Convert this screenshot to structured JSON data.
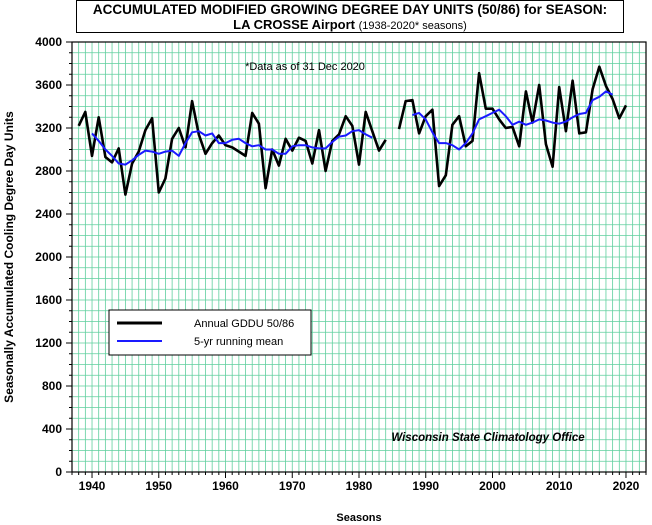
{
  "title": {
    "line1": "ACCUMULATED MODIFIED GROWING DEGREE DAY UNITS (50/86) for SEASON:",
    "station": "LA CROSSE Airport",
    "seasons": "(1938-2020* seasons)"
  },
  "note": "*Data as of 31 Dec 2020",
  "credit": "Wisconsin State Climatology Office",
  "chart_data": {
    "type": "line",
    "xlabel": "Seasons",
    "ylabel": "Seasonally Accumulated Cooling Degree Day Units",
    "xlim": [
      1937,
      2023
    ],
    "ylim": [
      0,
      4000
    ],
    "x_ticks": [
      1940,
      1950,
      1960,
      1970,
      1980,
      1990,
      2000,
      2010,
      2020
    ],
    "y_ticks": [
      0,
      400,
      800,
      1200,
      1600,
      2000,
      2400,
      2800,
      3200,
      3600,
      4000
    ],
    "grid": true,
    "legend_position": "lower-left",
    "series": [
      {
        "name": "Annual GDDU 50/86",
        "color": "#000000",
        "x": [
          1938,
          1939,
          1940,
          1941,
          1942,
          1943,
          1944,
          1945,
          1946,
          1947,
          1948,
          1949,
          1950,
          1951,
          1952,
          1953,
          1954,
          1955,
          1956,
          1957,
          1958,
          1959,
          1960,
          1961,
          1962,
          1963,
          1964,
          1965,
          1966,
          1967,
          1968,
          1969,
          1970,
          1971,
          1972,
          1973,
          1974,
          1975,
          1976,
          1977,
          1978,
          1979,
          1980,
          1981,
          1982,
          1983,
          1984,
          null,
          1986,
          1987,
          1988,
          1989,
          1990,
          1991,
          1992,
          1993,
          1994,
          1995,
          1996,
          1997,
          1998,
          1999,
          2000,
          2001,
          2002,
          2003,
          2004,
          2005,
          2006,
          2007,
          2008,
          2009,
          2010,
          2011,
          2012,
          2013,
          2014,
          2015,
          2016,
          2017,
          2018,
          2019,
          2020
        ],
        "values": [
          3220,
          3350,
          2940,
          3300,
          2930,
          2880,
          3010,
          2580,
          2870,
          2980,
          3180,
          3290,
          2600,
          2730,
          3100,
          3200,
          3020,
          3450,
          3140,
          2960,
          3060,
          3130,
          3040,
          3020,
          2980,
          2940,
          3340,
          3240,
          2640,
          3000,
          2850,
          3100,
          2990,
          3110,
          3080,
          2870,
          3180,
          2800,
          3080,
          3140,
          3310,
          3220,
          2860,
          3350,
          3170,
          2990,
          3090,
          null,
          3190,
          3450,
          3460,
          3150,
          3310,
          3370,
          2660,
          2760,
          3230,
          3310,
          3030,
          3080,
          3710,
          3380,
          3380,
          3280,
          3200,
          3210,
          3030,
          3540,
          3250,
          3600,
          3050,
          2840,
          3580,
          3170,
          3640,
          3150,
          3160,
          3560,
          3770,
          3590,
          3470,
          3290,
          3410
        ]
      },
      {
        "name": "5-yr running mean",
        "color": "#1a1aff",
        "x": [
          1940,
          1941,
          1942,
          1943,
          1944,
          1945,
          1946,
          1947,
          1948,
          1949,
          1950,
          1951,
          1952,
          1953,
          1954,
          1955,
          1956,
          1957,
          1958,
          1959,
          1960,
          1961,
          1962,
          1963,
          1964,
          1965,
          1966,
          1967,
          1968,
          1969,
          1970,
          1971,
          1972,
          1973,
          1974,
          1975,
          1976,
          1977,
          1978,
          1979,
          1980,
          1981,
          1982,
          null,
          1988,
          1989,
          1990,
          1991,
          1992,
          1993,
          1994,
          1995,
          1996,
          1997,
          1998,
          1999,
          2000,
          2001,
          2002,
          2003,
          2004,
          2005,
          2006,
          2007,
          2008,
          2009,
          2010,
          2011,
          2012,
          2013,
          2014,
          2015,
          2016,
          2017,
          2018
        ],
        "values": [
          3150,
          3080,
          3000,
          2940,
          2870,
          2860,
          2900,
          2950,
          2990,
          2980,
          2960,
          2980,
          2990,
          2940,
          3060,
          3160,
          3170,
          3130,
          3150,
          3060,
          3060,
          3090,
          3100,
          3060,
          3030,
          3040,
          3000,
          3000,
          2960,
          2960,
          3030,
          3040,
          3040,
          3020,
          3010,
          3010,
          3070,
          3120,
          3130,
          3170,
          3180,
          3140,
          3110,
          null,
          3320,
          3340,
          3280,
          3160,
          3060,
          3060,
          3040,
          3000,
          3060,
          3150,
          3280,
          3310,
          3340,
          3370,
          3310,
          3230,
          3260,
          3230,
          3250,
          3280,
          3270,
          3250,
          3240,
          3260,
          3300,
          3330,
          3340,
          3460,
          3490,
          3540,
          3510
        ]
      }
    ]
  }
}
